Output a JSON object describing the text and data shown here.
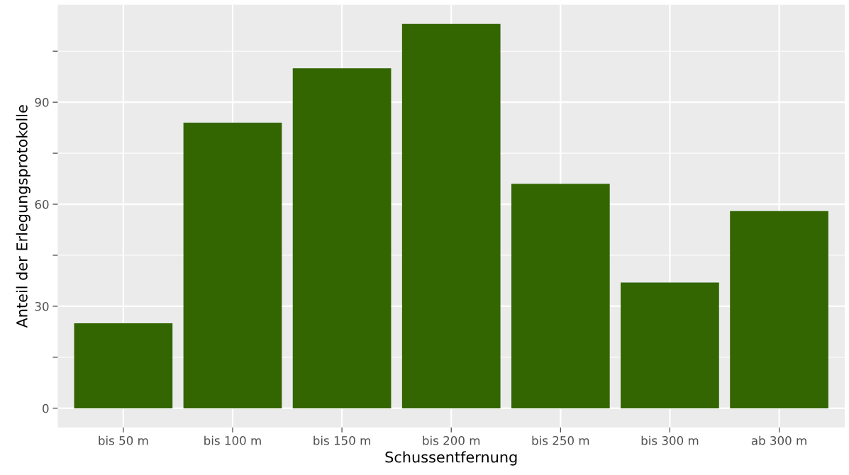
{
  "chart_data": {
    "type": "bar",
    "xlabel": "Schussentfernung",
    "ylabel": "Anteil der Erlegungsprotokolle",
    "categories": [
      "bis 50 m",
      "bis 100 m",
      "bis 150 m",
      "bis 200 m",
      "bis 250 m",
      "bis 300 m",
      "ab 300 m"
    ],
    "values": [
      25,
      84,
      100,
      113,
      66,
      37,
      58
    ],
    "color": "#336600",
    "ylim": [
      -5.65,
      118.65
    ],
    "yticks": [
      0,
      {
        "value": 15,
        "label": null
      },
      30,
      {
        "value": 45,
        "label": null
      },
      60,
      {
        "value": 75,
        "label": null
      },
      90,
      {
        "value": 105,
        "label": null
      }
    ],
    "grid": true
  }
}
